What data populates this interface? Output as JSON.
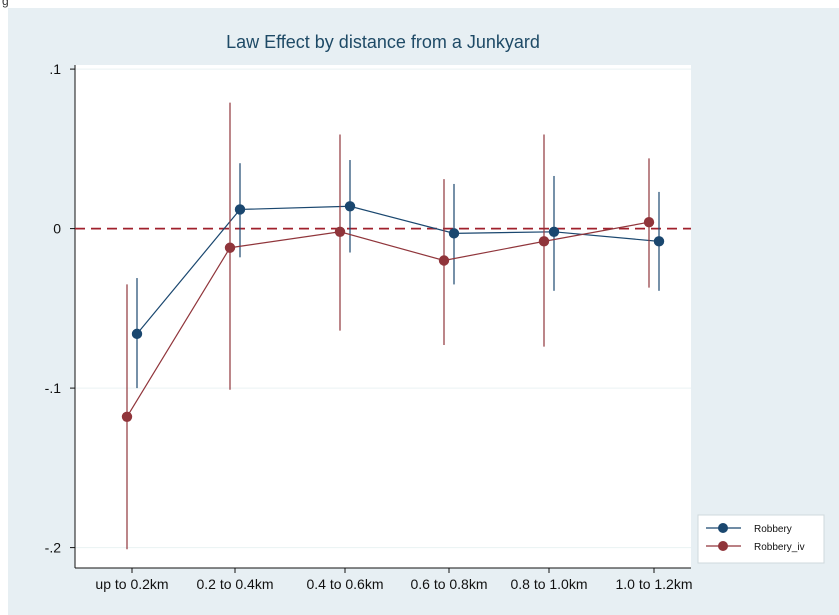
{
  "caption_fragment": "g",
  "chart_data": {
    "type": "line",
    "title": "Law Effect by distance from a Junkyard",
    "xlabel": "",
    "ylabel": "",
    "categories": [
      "up to 0.2km",
      "0.2 to 0.4km",
      "0.4 to 0.6km",
      "0.6 to 0.8km",
      "0.8 to 1.0km",
      "1.0 to 1.2km"
    ],
    "ylim": [
      -0.2,
      0.1
    ],
    "yticks": [
      0.1,
      0,
      -0.1,
      -0.2
    ],
    "ytick_labels": [
      ".1",
      "0",
      "-.1",
      "-.2"
    ],
    "reference_line": {
      "y": 0,
      "style": "dashed",
      "color": "#a0202c"
    },
    "grid": true,
    "legend_position": "bottom-right",
    "series": [
      {
        "name": "Robbery",
        "color": "#1a476f",
        "values": [
          -0.066,
          0.012,
          0.014,
          -0.003,
          -0.002,
          -0.008
        ],
        "ci_low": [
          -0.1,
          -0.018,
          -0.015,
          -0.035,
          -0.039,
          -0.039
        ],
        "ci_high": [
          -0.031,
          0.041,
          0.043,
          0.028,
          0.033,
          0.023
        ]
      },
      {
        "name": "Robbery_iv",
        "color": "#90353b",
        "values": [
          -0.118,
          -0.012,
          -0.002,
          -0.02,
          -0.008,
          0.004
        ],
        "ci_low": [
          -0.201,
          -0.101,
          -0.064,
          -0.073,
          -0.074,
          -0.037
        ],
        "ci_high": [
          -0.035,
          0.079,
          0.059,
          0.031,
          0.059,
          0.044
        ]
      }
    ]
  }
}
